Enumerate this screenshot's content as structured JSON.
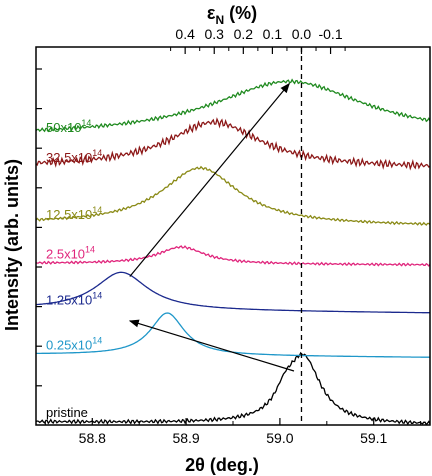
{
  "chart_data": {
    "type": "line",
    "xlabel": "2θ (deg.)",
    "ylabel": "Intensity (arb. units)",
    "top_axis_label": "ε_N (%)",
    "xlim": [
      58.74,
      59.16
    ],
    "bottom_ticks": [
      58.8,
      58.9,
      59.0,
      59.1
    ],
    "bottom_tick_labels": [
      "58.8",
      "58.9",
      "59.0",
      "59.1"
    ],
    "top_ticks": [
      0.4,
      0.3,
      0.2,
      0.1,
      0.0,
      -0.1
    ],
    "top_tick_labels": [
      "0.4",
      "0.3",
      "0.2",
      "0.1",
      "0.0",
      "-0.1"
    ],
    "top_axis_zero_at_2theta": 59.023,
    "top_axis_2theta_per_percent": -0.31,
    "dashed_line_x": 59.023,
    "grid": false,
    "legend": "inline labels at left of each curve",
    "series": [
      {
        "name": "pristine",
        "color": "#000000",
        "offset": 0.0,
        "peak_x": 59.025,
        "peak_h": 0.17,
        "width": 0.022,
        "baseline_tilt": 0.008,
        "noise": 0.003,
        "shoulders": [
          {
            "x": 59.005,
            "h": 0.04,
            "w": 0.012
          }
        ]
      },
      {
        "name": "0.25x10^14",
        "color": "#1f97c9",
        "offset": 0.175,
        "peak_x": 58.88,
        "peak_h": 0.11,
        "width": 0.022,
        "baseline_tilt": 0.008,
        "noise": 0.0
      },
      {
        "name": "1.25x10^14",
        "color": "#1c2a8e",
        "offset": 0.29,
        "peak_x": 58.831,
        "peak_h": 0.098,
        "width": 0.034,
        "baseline_tilt": 0.01,
        "noise": 0.0
      },
      {
        "name": "2.5x10^14",
        "color": "#e0257c",
        "offset": 0.415,
        "peak_x": 58.895,
        "peak_h": 0.044,
        "width": 0.03,
        "baseline_tilt": 0.004,
        "noise": 0.002
      },
      {
        "name": "12.5x10^14",
        "color": "#8a8a16",
        "offset": 0.515,
        "peak_x": 58.915,
        "peak_h": 0.148,
        "width": 0.05,
        "baseline_tilt": 0.006,
        "noise": 0.002
      },
      {
        "name": "32.5x10^14",
        "color": "#8c1717",
        "offset": 0.665,
        "peak_x": 58.93,
        "peak_h": 0.118,
        "width": 0.06,
        "baseline_tilt": 0.004,
        "noise": 0.006
      },
      {
        "name": "50x10^14",
        "color": "#1f8a1f",
        "offset": 0.745,
        "peak_x": 59.01,
        "peak_h": 0.145,
        "width": 0.1,
        "baseline_tilt": 0.002,
        "noise": 0.003
      }
    ],
    "arrows": [
      {
        "from": [
          59.015,
          0.14
        ],
        "to": [
          58.84,
          0.27
        ]
      },
      {
        "from": [
          58.84,
          0.385
        ],
        "to": [
          59.01,
          0.885
        ]
      }
    ]
  }
}
